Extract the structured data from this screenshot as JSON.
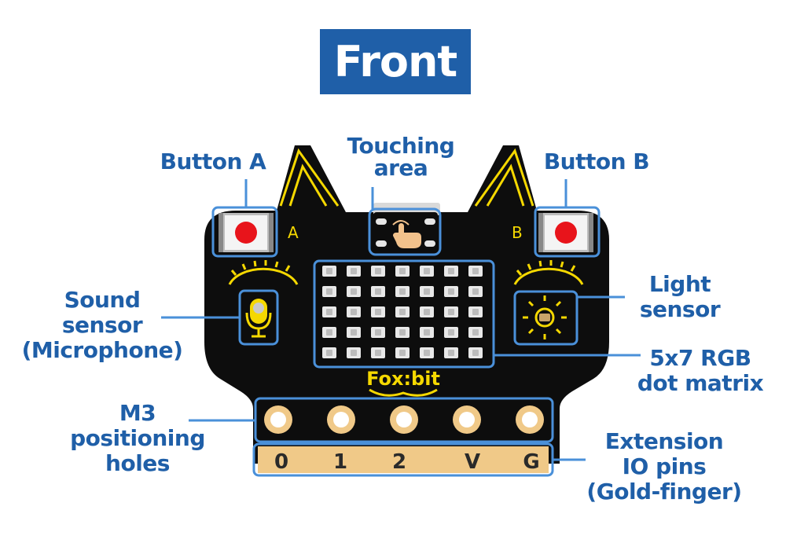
{
  "title": "Front",
  "board": {
    "name_text": "Fox:bit",
    "button_a_letter": "A",
    "button_b_letter": "B",
    "pin_labels": [
      "0",
      "1",
      "2",
      "V",
      "G"
    ]
  },
  "labels": {
    "button_a": "Button A",
    "touch": [
      "Touching",
      "area"
    ],
    "button_b": "Button B",
    "sound": [
      "Sound",
      "sensor",
      "(Microphone)"
    ],
    "light": [
      "Light",
      "sensor"
    ],
    "matrix": [
      "5x7 RGB",
      "dot matrix"
    ],
    "holes": [
      "M3",
      "positioning",
      "holes"
    ],
    "pins": [
      "Extension",
      "IO pins",
      "(Gold-finger)"
    ]
  },
  "colors": {
    "title_bg": "#1f5fa8",
    "callout": "#4a90d9",
    "label_text": "#1f5fa8",
    "board": "#0d0d0d",
    "accent_yellow": "#f5d800",
    "gold": "#f0c988"
  }
}
